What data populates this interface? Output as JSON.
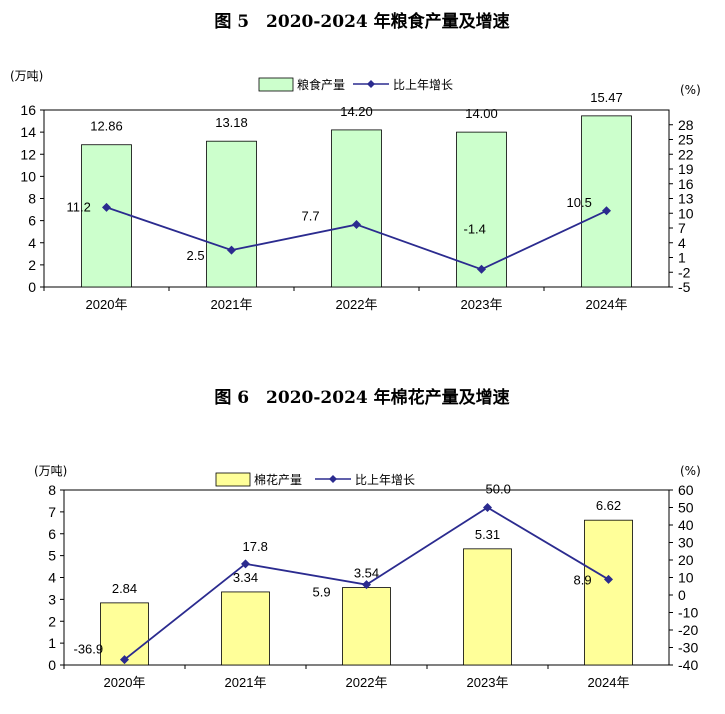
{
  "chart_data": [
    {
      "type": "bar",
      "title": "图 5　2020-2024 年粮食产量及增速",
      "categories": [
        "2020年",
        "2021年",
        "2022年",
        "2023年",
        "2024年"
      ],
      "y_unit": "(万吨)",
      "y2_unit": "(%)",
      "series": [
        {
          "name": "粮食产量",
          "kind": "bar",
          "axis": "left",
          "values": [
            12.86,
            13.18,
            14.2,
            14.0,
            15.47
          ],
          "labels": [
            "12.86",
            "13.18",
            "14.20",
            "14.00",
            "15.47"
          ],
          "color": "#ccffcc"
        },
        {
          "name": "比上年增长",
          "kind": "line",
          "axis": "right",
          "values": [
            11.2,
            2.5,
            7.7,
            -1.4,
            10.5
          ],
          "labels": [
            "11.2",
            "2.5",
            "7.7",
            "-1.4",
            "10.5"
          ],
          "color": "#2b2b8f"
        }
      ],
      "ylim": [
        0,
        16
      ],
      "yticks": [
        "0",
        "2",
        "4",
        "6",
        "8",
        "10",
        "12",
        "14",
        "16"
      ],
      "y2lim": [
        -5,
        31
      ],
      "y2ticks": [
        "-5",
        "-2",
        "1",
        "4",
        "7",
        "10",
        "13",
        "16",
        "19",
        "22",
        "25",
        "28"
      ],
      "legend_position": "top-center"
    },
    {
      "type": "bar",
      "title": "图 6　2020-2024 年棉花产量及增速",
      "categories": [
        "2020年",
        "2021年",
        "2022年",
        "2023年",
        "2024年"
      ],
      "y_unit": "(万吨)",
      "y2_unit": "(%)",
      "series": [
        {
          "name": "棉花产量",
          "kind": "bar",
          "axis": "left",
          "values": [
            2.84,
            3.34,
            3.54,
            5.31,
            6.62
          ],
          "labels": [
            "2.84",
            "3.34",
            "3.54",
            "5.31",
            "6.62"
          ],
          "color": "#ffff99"
        },
        {
          "name": "比上年增长",
          "kind": "line",
          "axis": "right",
          "values": [
            -36.9,
            17.8,
            5.9,
            50.0,
            8.9
          ],
          "labels": [
            "-36.9",
            "17.8",
            "5.9",
            "50.0",
            "8.9"
          ],
          "color": "#2b2b8f"
        }
      ],
      "ylim": [
        0,
        8
      ],
      "yticks": [
        "0",
        "1",
        "2",
        "3",
        "4",
        "5",
        "6",
        "7",
        "8"
      ],
      "y2lim": [
        -40,
        60
      ],
      "y2ticks": [
        "-40",
        "-30",
        "-20",
        "-10",
        "0",
        "10",
        "20",
        "30",
        "40",
        "50",
        "60"
      ],
      "legend_position": "top-center"
    }
  ]
}
